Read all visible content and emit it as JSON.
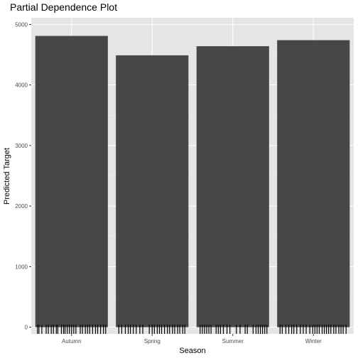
{
  "chart_data": {
    "type": "bar",
    "title": "Partial Dependence Plot",
    "xlabel": "Season",
    "ylabel": "Predicted Target",
    "categories": [
      "Autumn",
      "Spring",
      "Summer",
      "Winter"
    ],
    "values": [
      4810,
      4490,
      4640,
      4740
    ],
    "ylim": [
      -110,
      5110
    ],
    "yticks": [
      0,
      1000,
      2000,
      3000,
      4000,
      5000
    ],
    "ytick_labels": [
      "0",
      "1000",
      "2000",
      "3000",
      "4000",
      "5000"
    ],
    "grid": true,
    "panel_background": "#e5e5e5",
    "bar_color": "#474747",
    "rug_color": "#000000",
    "rug_positions": {
      "Autumn": [
        0.03,
        0.05,
        0.09,
        0.15,
        0.18,
        0.22,
        0.25,
        0.29,
        0.31,
        0.36,
        0.39,
        0.41,
        0.44,
        0.47,
        0.5,
        0.53,
        0.56,
        0.62,
        0.65,
        0.69,
        0.72,
        0.75,
        0.79,
        0.83,
        0.86,
        0.9,
        0.94,
        0.97
      ],
      "Spring": [
        0.04,
        0.08,
        0.13,
        0.17,
        0.2,
        0.24,
        0.28,
        0.33,
        0.37,
        0.46,
        0.5,
        0.53,
        0.57,
        0.6,
        0.63,
        0.67,
        0.71,
        0.74,
        0.78,
        0.81,
        0.85,
        0.88,
        0.92,
        0.95
      ],
      "Summer": [
        0.05,
        0.08,
        0.11,
        0.14,
        0.17,
        0.2,
        0.27,
        0.3,
        0.33,
        0.37,
        0.42,
        0.46,
        0.55,
        0.6,
        0.67,
        0.7,
        0.78,
        0.82,
        0.85,
        0.88,
        0.91,
        0.94,
        0.97
      ],
      "Winter": [
        0.04,
        0.07,
        0.12,
        0.16,
        0.2,
        0.23,
        0.27,
        0.32,
        0.36,
        0.4,
        0.45,
        0.49,
        0.52,
        0.55,
        0.58,
        0.62,
        0.65,
        0.68,
        0.71,
        0.74,
        0.78,
        0.81,
        0.85,
        0.88,
        0.91,
        0.95
      ]
    }
  }
}
